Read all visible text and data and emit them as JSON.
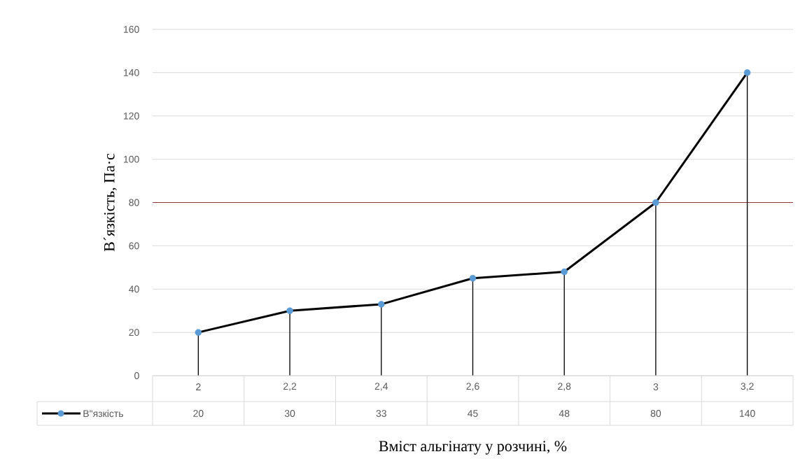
{
  "chart_data": {
    "type": "line",
    "xlabel": "Вміст альгінату у розчині, %",
    "ylabel": "В´язкість, Па·с",
    "categories": [
      "2",
      "2,2",
      "2,4",
      "2,6",
      "2,8",
      "3",
      "3,2"
    ],
    "series": [
      {
        "name": "В\"язкість",
        "color": "#000000",
        "colors": [
          "#5b9bd5",
          "#5b9bd5",
          "#5b9bd5",
          "#5b9bd5",
          "#5b9bd5",
          "#5b9bd5",
          "#5b9bd5"
        ],
        "values": [
          20,
          30,
          33,
          45,
          48,
          80,
          140
        ],
        "errors": [
          [
            20,
            0
          ],
          [
            30,
            0
          ],
          [
            33,
            0
          ],
          [
            45,
            0
          ],
          [
            48,
            0
          ],
          [
            80,
            0
          ],
          [
            140,
            0
          ]
        ]
      }
    ],
    "ylim": [
      0,
      160
    ],
    "yticks": [
      0,
      20,
      40,
      60,
      80,
      100,
      120,
      140,
      160
    ],
    "grid": "y",
    "marker": "circle",
    "line_style": "solid",
    "data_labels": true,
    "legend": "bottom",
    "ref_lines": [
      {
        "axis": "y",
        "value": 80,
        "color": "#8b3a3a"
      }
    ]
  }
}
